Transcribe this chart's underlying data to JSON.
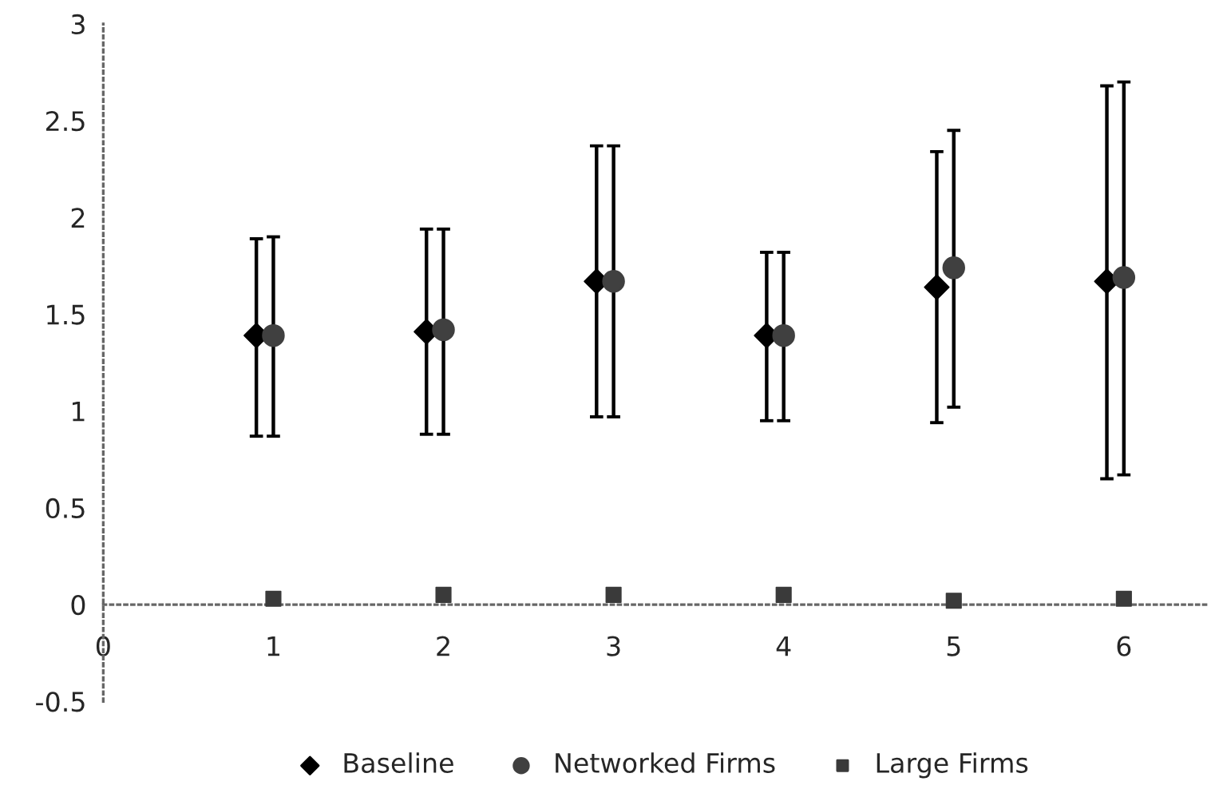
{
  "chart_data": {
    "type": "scatter",
    "xlim": [
      0,
      6.5
    ],
    "xticks": [
      0,
      1,
      2,
      3,
      4,
      5,
      6
    ],
    "ylim": [
      -0.5,
      3
    ],
    "yticks": [
      -0.5,
      0,
      0.5,
      1,
      1.5,
      2,
      2.5,
      3
    ],
    "legend": "bottom",
    "series": [
      {
        "name": "Baseline",
        "color": "#000000",
        "marker": "diamond",
        "x": [
          0.9,
          1.9,
          2.9,
          3.9,
          4.9,
          5.9
        ],
        "values": [
          1.39,
          1.41,
          1.67,
          1.39,
          1.64,
          1.67
        ],
        "errors": [
          [
            0.87,
            1.89
          ],
          [
            0.88,
            1.94
          ],
          [
            0.97,
            2.37
          ],
          [
            0.95,
            1.82
          ],
          [
            0.94,
            2.34
          ],
          [
            0.65,
            2.68
          ]
        ]
      },
      {
        "name": "Networked Firms",
        "color": "#404040",
        "marker": "circle",
        "x": [
          1,
          2,
          3,
          4,
          5,
          6
        ],
        "values": [
          1.39,
          1.42,
          1.67,
          1.39,
          1.74,
          1.69
        ],
        "errors": [
          [
            0.87,
            1.9
          ],
          [
            0.88,
            1.94
          ],
          [
            0.97,
            2.37
          ],
          [
            0.95,
            1.82
          ],
          [
            1.02,
            2.45
          ],
          [
            0.67,
            2.7
          ]
        ]
      },
      {
        "name": "Large Firms",
        "color": "#3a3a3a",
        "marker": "square",
        "x": [
          1,
          2,
          3,
          4,
          5,
          6
        ],
        "values": [
          0.03,
          0.05,
          0.05,
          0.05,
          0.02,
          0.03
        ]
      }
    ]
  }
}
